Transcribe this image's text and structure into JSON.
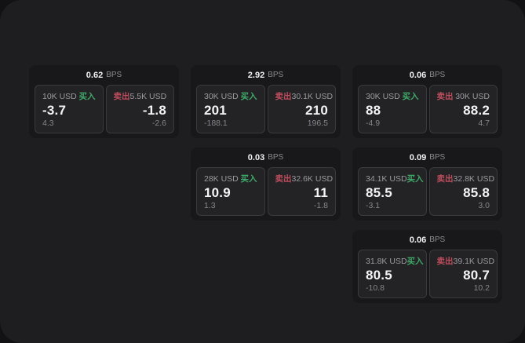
{
  "colors": {
    "buy": "#3fa968",
    "sell": "#bf4d5d",
    "window_bg": "#1e1e20",
    "card_bg": "#18181a",
    "panel_bg": "#232326"
  },
  "cards": [
    {
      "col": 1,
      "row": 1,
      "bps": "0.62",
      "unit": "BPS",
      "buy_amount": "10K USD",
      "buy_label": "买入",
      "buy_price": "-3.7",
      "buy_delta": "4.3",
      "sell_label": "卖出",
      "sell_amount": "5.5K USD",
      "sell_price": "-1.8",
      "sell_delta": "-2.6"
    },
    {
      "col": 2,
      "row": 1,
      "bps": "2.92",
      "unit": "BPS",
      "buy_amount": "30K USD",
      "buy_label": "买入",
      "buy_price": "201",
      "buy_delta": "-188.1",
      "sell_label": "卖出",
      "sell_amount": "30.1K USD",
      "sell_price": "210",
      "sell_delta": "196.5"
    },
    {
      "col": 3,
      "row": 1,
      "bps": "0.06",
      "unit": "BPS",
      "buy_amount": "30K USD",
      "buy_label": "买入",
      "buy_price": "88",
      "buy_delta": "-4.9",
      "sell_label": "卖出",
      "sell_amount": "30K USD",
      "sell_price": "88.2",
      "sell_delta": "4.7"
    },
    {
      "col": 2,
      "row": 2,
      "bps": "0.03",
      "unit": "BPS",
      "buy_amount": "28K USD",
      "buy_label": "买入",
      "buy_price": "10.9",
      "buy_delta": "1.3",
      "sell_label": "卖出",
      "sell_amount": "32.6K USD",
      "sell_price": "11",
      "sell_delta": "-1.8"
    },
    {
      "col": 3,
      "row": 2,
      "bps": "0.09",
      "unit": "BPS",
      "buy_amount": "34.1K USD",
      "buy_label": "买入",
      "buy_price": "85.5",
      "buy_delta": "-3.1",
      "sell_label": "卖出",
      "sell_amount": "32.8K USD",
      "sell_price": "85.8",
      "sell_delta": "3.0"
    },
    {
      "col": 3,
      "row": 3,
      "bps": "0.06",
      "unit": "BPS",
      "buy_amount": "31.8K USD",
      "buy_label": "买入",
      "buy_price": "80.5",
      "buy_delta": "-10.8",
      "sell_label": "卖出",
      "sell_amount": "39.1K USD",
      "sell_price": "80.7",
      "sell_delta": "10.2"
    }
  ]
}
